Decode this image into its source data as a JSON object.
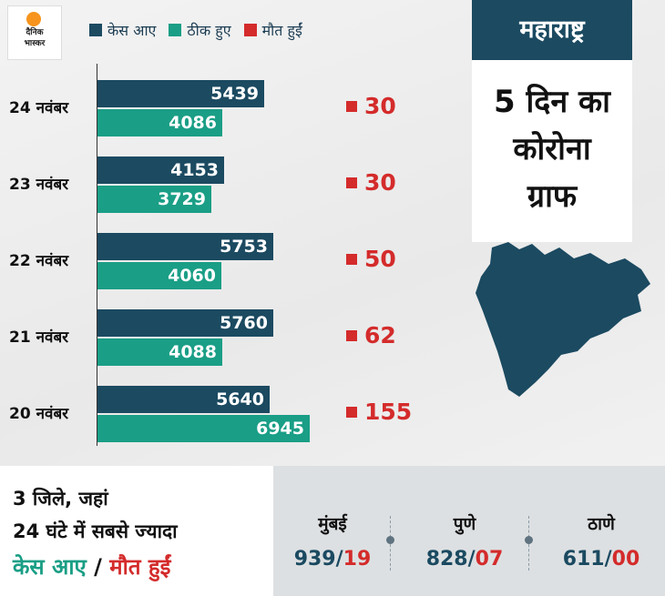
{
  "logo": {
    "line1": "दैनिक",
    "line2": "भास्कर"
  },
  "legend": [
    {
      "label": "केस आए",
      "color": "#1b4a61"
    },
    {
      "label": "ठीक हुए",
      "color": "#1a9e86"
    },
    {
      "label": "मौत हुईं",
      "color": "#d42b2b"
    }
  ],
  "panel": {
    "state": "महाराष्ट्र",
    "line1": "5 दिन का",
    "line2": "कोरोना",
    "line3": "ग्राफ"
  },
  "chart_data": {
    "type": "bar",
    "categories": [
      "24 नवंबर",
      "23 नवंबर",
      "22 नवंबर",
      "21 नवंबर",
      "20 नवंबर"
    ],
    "series": [
      {
        "name": "केस आए",
        "values": [
          5439,
          4153,
          5753,
          5760,
          5640
        ]
      },
      {
        "name": "ठीक हुए",
        "values": [
          4086,
          3729,
          4060,
          4088,
          6945
        ]
      },
      {
        "name": "मौत हुईं",
        "values": [
          30,
          30,
          50,
          62,
          155
        ]
      }
    ]
  },
  "bottom": {
    "line1": "3 जिले, जहां",
    "line2": "24 घंटे में सबसे ज्यादा",
    "line3a": "केस आए",
    "line3sep": " / ",
    "line3b": "मौत हुईं",
    "cities": [
      {
        "name": "मुंबई",
        "cases": "939",
        "deaths": "19"
      },
      {
        "name": "पुणे",
        "cases": "828",
        "deaths": "07"
      },
      {
        "name": "ठाणे",
        "cases": "611",
        "deaths": "00"
      }
    ]
  }
}
